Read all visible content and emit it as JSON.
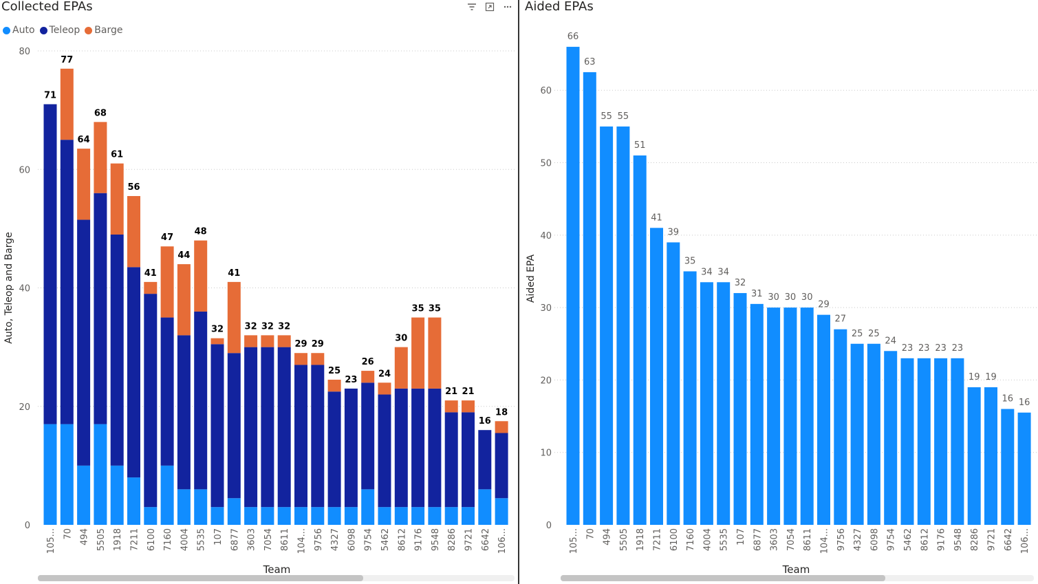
{
  "left": {
    "title": "Collected EPAs",
    "legend": [
      {
        "label": "Auto",
        "color": "#118dff"
      },
      {
        "label": "Teleop",
        "color": "#12239e"
      },
      {
        "label": "Barge",
        "color": "#e66c37"
      }
    ],
    "icons": [
      "filter-icon",
      "focus-mode-icon",
      "more-options-icon"
    ]
  },
  "right": {
    "title": "Aided EPAs"
  },
  "chart_data": [
    {
      "type": "bar",
      "stacked": true,
      "title": "Collected EPAs",
      "xlabel": "Team",
      "ylabel": "Auto, Teleop and Barge",
      "ylim": [
        0,
        80
      ],
      "yticks": [
        0,
        20,
        40,
        60,
        80
      ],
      "grid": true,
      "legend_position": "top-left",
      "categories": [
        "105...",
        "70",
        "494",
        "5505",
        "1918",
        "7211",
        "6100",
        "7160",
        "4004",
        "5535",
        "107",
        "6877",
        "3603",
        "7054",
        "8611",
        "104...",
        "9756",
        "4327",
        "6098",
        "9754",
        "5462",
        "8612",
        "9176",
        "9548",
        "8286",
        "9721",
        "6642",
        "106..."
      ],
      "series": [
        {
          "name": "Auto",
          "color": "#118dff",
          "values": [
            17,
            17,
            10,
            17,
            10,
            8,
            3,
            10,
            6,
            6,
            3,
            4.5,
            3,
            3,
            3,
            3,
            3,
            3,
            3,
            6,
            3,
            3,
            3,
            3,
            3,
            3,
            6,
            4.5
          ]
        },
        {
          "name": "Teleop",
          "color": "#12239e",
          "values": [
            54,
            48,
            41.5,
            39,
            39,
            35.5,
            36,
            25,
            26,
            30,
            27.5,
            24.5,
            27,
            27,
            27,
            24,
            24,
            19.5,
            20,
            18,
            19,
            20,
            20,
            20,
            16,
            16,
            10,
            11
          ]
        },
        {
          "name": "Barge",
          "color": "#e66c37",
          "values": [
            0,
            12,
            12,
            12,
            12,
            12,
            2,
            12,
            12,
            12,
            1,
            12,
            2,
            2,
            2,
            2,
            2,
            2,
            0,
            2,
            2,
            7,
            12,
            12,
            2,
            2,
            0,
            2
          ]
        }
      ],
      "totals": [
        "71",
        "77",
        "64",
        "68",
        "61",
        "56",
        "41",
        "47",
        "44",
        "48",
        "32",
        "41",
        "32",
        "32",
        "32",
        "29",
        "29",
        "25",
        "23",
        "26",
        "24",
        "30",
        "35",
        "35",
        "21",
        "21",
        "16",
        "18"
      ],
      "scroll_fraction": 0.68
    },
    {
      "type": "bar",
      "title": "Aided EPAs",
      "xlabel": "Team",
      "ylabel": "Aided EPA",
      "ylim": [
        0,
        68
      ],
      "yticks": [
        0,
        10,
        20,
        30,
        40,
        50,
        60
      ],
      "grid": true,
      "color": "#118dff",
      "categories": [
        "105...",
        "70",
        "494",
        "5505",
        "1918",
        "7211",
        "6100",
        "7160",
        "4004",
        "5535",
        "107",
        "6877",
        "3603",
        "7054",
        "8611",
        "104...",
        "9756",
        "4327",
        "6098",
        "9754",
        "5462",
        "8612",
        "9176",
        "9548",
        "8286",
        "9721",
        "6642",
        "106..."
      ],
      "values": [
        66,
        62.5,
        55,
        55,
        51,
        41,
        39,
        35,
        33.5,
        33.5,
        32,
        30.5,
        30,
        30,
        30,
        29,
        27,
        25,
        25,
        24,
        23,
        23,
        23,
        23,
        19,
        19,
        16,
        15.5
      ],
      "labels": [
        "66",
        "63",
        "55",
        "55",
        "51",
        "41",
        "39",
        "35",
        "34",
        "34",
        "32",
        "31",
        "30",
        "30",
        "30",
        "29",
        "27",
        "25",
        "25",
        "24",
        "23",
        "23",
        "23",
        "23",
        "19",
        "19",
        "16",
        "16"
      ],
      "scroll_fraction": 0.64
    }
  ]
}
